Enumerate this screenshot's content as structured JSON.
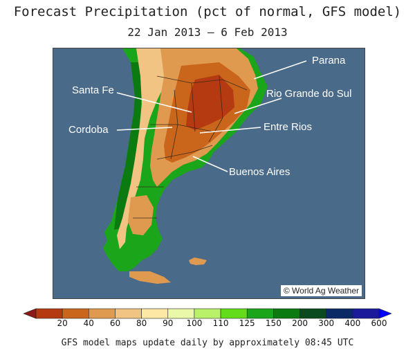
{
  "title": "Forecast Precipitation (pct of normal, GFS model)",
  "date_range": "22 Jan 2013 – 6 Feb 2013",
  "regions": [
    {
      "name": "Parana"
    },
    {
      "name": "Santa Fe"
    },
    {
      "name": "Rio Grande do Sul"
    },
    {
      "name": "Cordoba"
    },
    {
      "name": "Entre Rios"
    },
    {
      "name": "Buenos Aires"
    }
  ],
  "credit": "© World Ag Weather",
  "legend": {
    "ticks": [
      "20",
      "40",
      "60",
      "80",
      "90",
      "100",
      "110",
      "125",
      "150",
      "200",
      "300",
      "400",
      "600"
    ],
    "colors": [
      "#8b1a1a",
      "#b53a12",
      "#c9661c",
      "#e09a4f",
      "#f1c483",
      "#fde8a6",
      "#e9f9a9",
      "#b9f26a",
      "#63dc1b",
      "#1aa51b",
      "#0b7a10",
      "#0a4a1e",
      "#0a2a66",
      "#1a1a9a",
      "#0000ff"
    ]
  },
  "footer": "GFS model maps update daily by approximately 08:45 UTC"
}
